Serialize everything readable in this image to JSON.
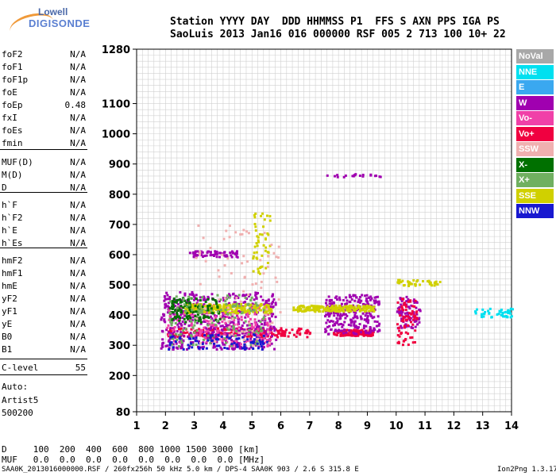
{
  "logo": {
    "line1": "Lowell",
    "line2": "DIGISONDE"
  },
  "header": {
    "row1": "Station YYYY DAY  DDD HHMMSS P1  FFS S AXN PPS IGA PS",
    "row2": "SaoLuis 2013 Jan16 016 000000 RSF 005 2 713 100 10+ 22"
  },
  "params_group1": [
    {
      "label": "foF2",
      "value": "N/A"
    },
    {
      "label": "foF1",
      "value": "N/A"
    },
    {
      "label": "foF1p",
      "value": "N/A"
    },
    {
      "label": "foE",
      "value": "N/A"
    },
    {
      "label": "foEp",
      "value": "0.48"
    },
    {
      "label": "fxI",
      "value": "N/A"
    },
    {
      "label": "foEs",
      "value": "N/A"
    },
    {
      "label": "fmin",
      "value": "N/A"
    }
  ],
  "params_group2": [
    {
      "label": "MUF(D)",
      "value": "N/A"
    },
    {
      "label": "M(D)",
      "value": "N/A"
    },
    {
      "label": "D",
      "value": "N/A"
    }
  ],
  "params_group3": [
    {
      "label": "h`F",
      "value": "N/A"
    },
    {
      "label": "h`F2",
      "value": "N/A"
    },
    {
      "label": "h`E",
      "value": "N/A"
    },
    {
      "label": "h`Es",
      "value": "N/A"
    }
  ],
  "params_group4": [
    {
      "label": "hmF2",
      "value": "N/A"
    },
    {
      "label": "hmF1",
      "value": "N/A"
    },
    {
      "label": "hmE",
      "value": "N/A"
    },
    {
      "label": "yF2",
      "value": "N/A"
    },
    {
      "label": "yF1",
      "value": "N/A"
    },
    {
      "label": "yE",
      "value": "N/A"
    },
    {
      "label": "B0",
      "value": "N/A"
    },
    {
      "label": "B1",
      "value": "N/A"
    }
  ],
  "clevel": {
    "label": "C-level",
    "value": "55"
  },
  "auto": {
    "line1": "Auto:",
    "line2": "Artist5",
    "line3": "500200"
  },
  "legend": [
    {
      "label": "NoVal",
      "color": "#a8a8a8"
    },
    {
      "label": "NNE",
      "color": "#00e0f0"
    },
    {
      "label": "E",
      "color": "#3aa8f0"
    },
    {
      "label": "W",
      "color": "#a000b0"
    },
    {
      "label": "Vo-",
      "color": "#f040a8"
    },
    {
      "label": "Vo+",
      "color": "#f00040"
    },
    {
      "label": "SSW",
      "color": "#f0b0b0"
    },
    {
      "label": "X-",
      "color": "#007000"
    },
    {
      "label": "X+",
      "color": "#70b060"
    },
    {
      "label": "SSE",
      "color": "#d0d000"
    },
    {
      "label": "NNW",
      "color": "#1818d0"
    }
  ],
  "bottom": {
    "row1": "D     100  200  400  600  800 1000 1500 3000 [km]",
    "row2": "MUF   0.0  0.0  0.0  0.0  0.0  0.0  0.0  0.0 [MHz]"
  },
  "footer": {
    "left": "SAA0K_2013016000000.RSF / 260fx256h 50 kHz 5.0 km / DPS-4 SAA0K 903 / 2.6 S 315.8 E",
    "right": "Ion2Png 1.3.17"
  },
  "chart_data": {
    "type": "scatter",
    "xlim": [
      1,
      14
    ],
    "ylim": [
      80,
      1280
    ],
    "x_ticks": [
      1,
      2,
      3,
      4,
      5,
      6,
      7,
      8,
      9,
      10,
      11,
      12,
      13,
      14
    ],
    "y_ticks": [
      80,
      200,
      300,
      400,
      500,
      600,
      700,
      800,
      900,
      1000,
      1100,
      1280
    ],
    "grid": true,
    "clusters": [
      {
        "name": "Vo+",
        "color": "#f00040",
        "x": [
          2.0,
          7.0
        ],
        "y": [
          330,
          360
        ],
        "n": 220
      },
      {
        "name": "Vo+",
        "color": "#f00040",
        "x": [
          7.8,
          9.2
        ],
        "y": [
          335,
          355
        ],
        "n": 140
      },
      {
        "name": "W",
        "color": "#a000b0",
        "x": [
          1.8,
          5.8
        ],
        "y": [
          290,
          480
        ],
        "n": 520
      },
      {
        "name": "W",
        "color": "#a000b0",
        "x": [
          7.5,
          9.4
        ],
        "y": [
          340,
          470
        ],
        "n": 260
      },
      {
        "name": "W",
        "color": "#a000b0",
        "x": [
          2.8,
          4.5
        ],
        "y": [
          595,
          615
        ],
        "n": 60
      },
      {
        "name": "Vo-",
        "color": "#f040a8",
        "x": [
          2.0,
          5.6
        ],
        "y": [
          300,
          440
        ],
        "n": 200
      },
      {
        "name": "SSE",
        "color": "#d0d000",
        "x": [
          2.6,
          5.7
        ],
        "y": [
          410,
          440
        ],
        "n": 220
      },
      {
        "name": "SSE",
        "color": "#d0d000",
        "x": [
          6.4,
          9.2
        ],
        "y": [
          415,
          435
        ],
        "n": 200
      },
      {
        "name": "X-",
        "color": "#007000",
        "x": [
          2.1,
          3.9
        ],
        "y": [
          380,
          460
        ],
        "n": 120
      },
      {
        "name": "X+",
        "color": "#70b060",
        "x": [
          2.1,
          5.4
        ],
        "y": [
          300,
          470
        ],
        "n": 140
      },
      {
        "name": "NNE",
        "color": "#00e0f0",
        "x": [
          12.7,
          14.0
        ],
        "y": [
          395,
          425
        ],
        "n": 45
      },
      {
        "name": "W",
        "color": "#a000b0",
        "x": [
          10.0,
          10.8
        ],
        "y": [
          360,
          470
        ],
        "n": 80
      },
      {
        "name": "Vo+",
        "color": "#f00040",
        "x": [
          10.0,
          10.7
        ],
        "y": [
          300,
          460
        ],
        "n": 70
      },
      {
        "name": "NNW",
        "color": "#1818d0",
        "x": [
          2.0,
          5.5
        ],
        "y": [
          290,
          340
        ],
        "n": 90
      },
      {
        "name": "SSE",
        "color": "#d0d000",
        "x": [
          5.0,
          5.6
        ],
        "y": [
          540,
          740
        ],
        "n": 50
      },
      {
        "name": "SSW",
        "color": "#f0b0b0",
        "x": [
          3.0,
          6.0
        ],
        "y": [
          300,
          700
        ],
        "n": 80
      },
      {
        "name": "W",
        "color": "#a000b0",
        "x": [
          7.5,
          9.5
        ],
        "y": [
          860,
          870
        ],
        "n": 20
      },
      {
        "name": "SSE",
        "color": "#d0d000",
        "x": [
          10.0,
          11.5
        ],
        "y": [
          500,
          520
        ],
        "n": 40
      }
    ]
  }
}
